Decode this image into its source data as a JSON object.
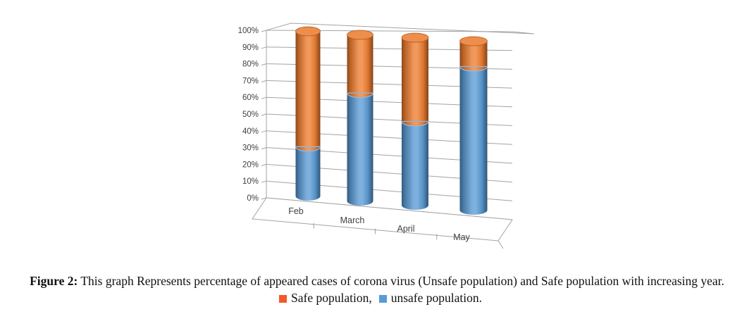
{
  "figure": {
    "caption_label": "Figure 2:",
    "caption_text": " This graph Represents percentage of appeared cases of corona virus (Unsafe population) and Safe population with increasing year.",
    "legend": [
      {
        "label": "Safe population,",
        "color": "#F2592B"
      },
      {
        "label": "unsafe population.",
        "color": "#5B9BD5"
      }
    ]
  },
  "chart_data": {
    "type": "bar",
    "subtype": "3d-stacked-cylinder",
    "title": "",
    "xlabel": "",
    "ylabel": "",
    "categories": [
      "Feb",
      "March",
      "April",
      "May"
    ],
    "series": [
      {
        "name": "unsafe population",
        "color": "#5B9BD5",
        "values": [
          30,
          65,
          50,
          85
        ]
      },
      {
        "name": "Safe population",
        "color": "#ED7D31",
        "values": [
          70,
          35,
          50,
          15
        ]
      }
    ],
    "stacked": true,
    "totals_note": "each bar stacks to 100%",
    "ylim": [
      0,
      100
    ],
    "y_tick_labels": [
      "0%",
      "10%",
      "20%",
      "30%",
      "40%",
      "50%",
      "60%",
      "70%",
      "80%",
      "90%",
      "100%"
    ],
    "grid": true,
    "grid_color": "#A3A3A3",
    "axis_text_color": "#3F3F3F",
    "legend_position": "below-caption"
  }
}
